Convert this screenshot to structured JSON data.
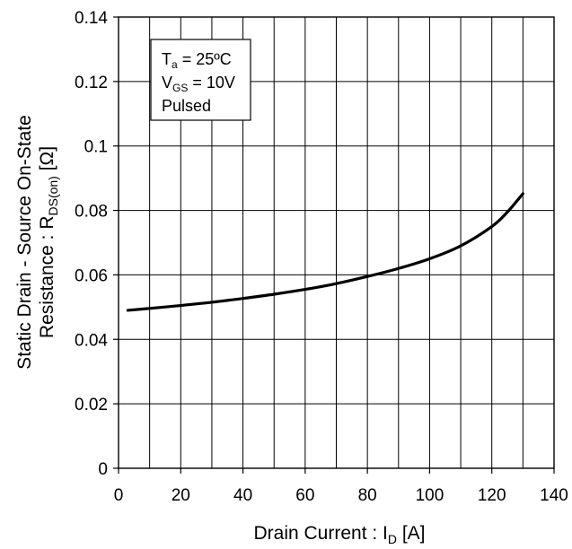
{
  "chart_data": {
    "type": "line",
    "xlabel": "Drain Current : I",
    "xlabel_sub": "D",
    "xlabel_unit": " [A]",
    "ylabel_line1": "Static Drain - Source On-State",
    "ylabel_line2": "Resistance : R",
    "ylabel_sub": "DS(on)",
    "ylabel_unit": " [Ω]",
    "xlim": [
      0,
      140
    ],
    "ylim": [
      0,
      0.14
    ],
    "x_ticks": [
      "0",
      "20",
      "40",
      "60",
      "80",
      "100",
      "120",
      "140"
    ],
    "y_ticks": [
      "0",
      "0.02",
      "0.04",
      "0.06",
      "0.08",
      "0.1",
      "0.12",
      "0.14"
    ],
    "x_tick_values": [
      0,
      20,
      40,
      60,
      80,
      100,
      120,
      140
    ],
    "y_tick_values": [
      0,
      0.02,
      0.04,
      0.06,
      0.08,
      0.1,
      0.12,
      0.14
    ],
    "x_grid_step": 10,
    "y_grid_step": 0.02,
    "grid": true,
    "legend_box": {
      "ta_main": "T",
      "ta_sub": "a",
      "ta_value": " = 25ºC",
      "vgs_main": "V",
      "vgs_sub": "GS",
      "vgs_value": " = 10V",
      "mode": "Pulsed"
    },
    "series": [
      {
        "color": "#000000",
        "x": [
          3,
          10,
          20,
          30,
          40,
          50,
          60,
          70,
          80,
          90,
          100,
          110,
          120,
          125,
          130
        ],
        "y": [
          0.049,
          0.0496,
          0.0505,
          0.0515,
          0.0527,
          0.054,
          0.0555,
          0.0573,
          0.0595,
          0.062,
          0.065,
          0.069,
          0.075,
          0.0795,
          0.0852
        ]
      }
    ]
  }
}
